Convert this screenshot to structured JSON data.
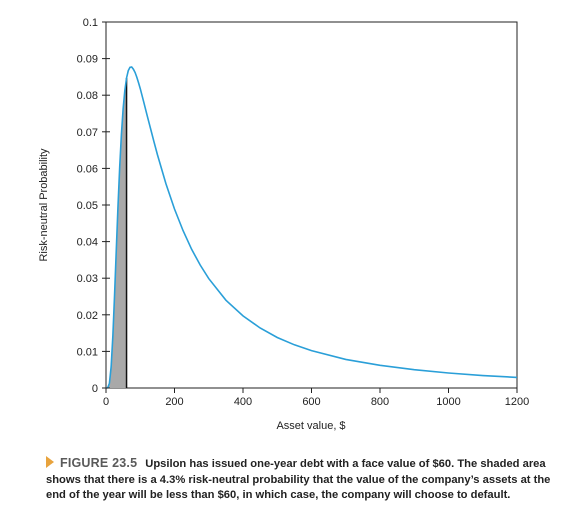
{
  "chart_data": {
    "type": "line",
    "xlabel": "Asset value, $",
    "ylabel": "Risk-neutral Probability",
    "xlim": [
      0,
      1200
    ],
    "ylim": [
      0,
      0.1
    ],
    "x_ticks": [
      0,
      200,
      400,
      600,
      800,
      1000,
      1200
    ],
    "x_tick_labels": [
      "0",
      "200",
      "400",
      "600",
      "800",
      "1000",
      "1200"
    ],
    "y_ticks": [
      0,
      0.01,
      0.02,
      0.03,
      0.04,
      0.05,
      0.06,
      0.07,
      0.08,
      0.09,
      0.1
    ],
    "y_tick_labels": [
      "0",
      "0.01",
      "0.02",
      "0.03",
      "0.04",
      "0.05",
      "0.06",
      "0.07",
      "0.08",
      "0.09",
      "0.1"
    ],
    "grid": false,
    "series": [
      {
        "color": "#2a9fd8",
        "x": [
          0,
          5,
          10,
          15,
          20,
          25,
          30,
          35,
          40,
          45,
          50,
          55,
          60,
          65,
          70,
          75,
          80,
          85,
          90,
          95,
          100,
          110,
          120,
          130,
          140,
          150,
          175,
          200,
          225,
          250,
          275,
          300,
          350,
          400,
          450,
          500,
          550,
          600,
          700,
          800,
          900,
          1000,
          1100,
          1200
        ],
        "y": [
          0,
          7e-05,
          0.0013,
          0.0058,
          0.0142,
          0.0254,
          0.0377,
          0.0497,
          0.0604,
          0.0693,
          0.0763,
          0.0813,
          0.0847,
          0.0867,
          0.0876,
          0.0877,
          0.0871,
          0.0862,
          0.0849,
          0.0834,
          0.0818,
          0.0782,
          0.0745,
          0.0709,
          0.0673,
          0.0638,
          0.0558,
          0.0489,
          0.043,
          0.0379,
          0.0336,
          0.0299,
          0.024,
          0.0197,
          0.0164,
          0.0138,
          0.0118,
          0.0102,
          0.0078,
          0.0062,
          0.005,
          0.0041,
          0.0034,
          0.0029
        ]
      }
    ],
    "shaded_region": {
      "x_from": 0,
      "x_to": 60,
      "fill": "#a9a9a9",
      "stroke": "#111111"
    }
  },
  "caption": {
    "label": "FIGURE 23.5",
    "text": "Upsilon has issued one-year debt with a face value of $60. The shaded area shows that there is a 4.3% risk-neutral probability that the value of the company’s assets at the end of the year will be less than $60, in which case, the company will choose to default.",
    "marker_color": "#e8a33d"
  }
}
